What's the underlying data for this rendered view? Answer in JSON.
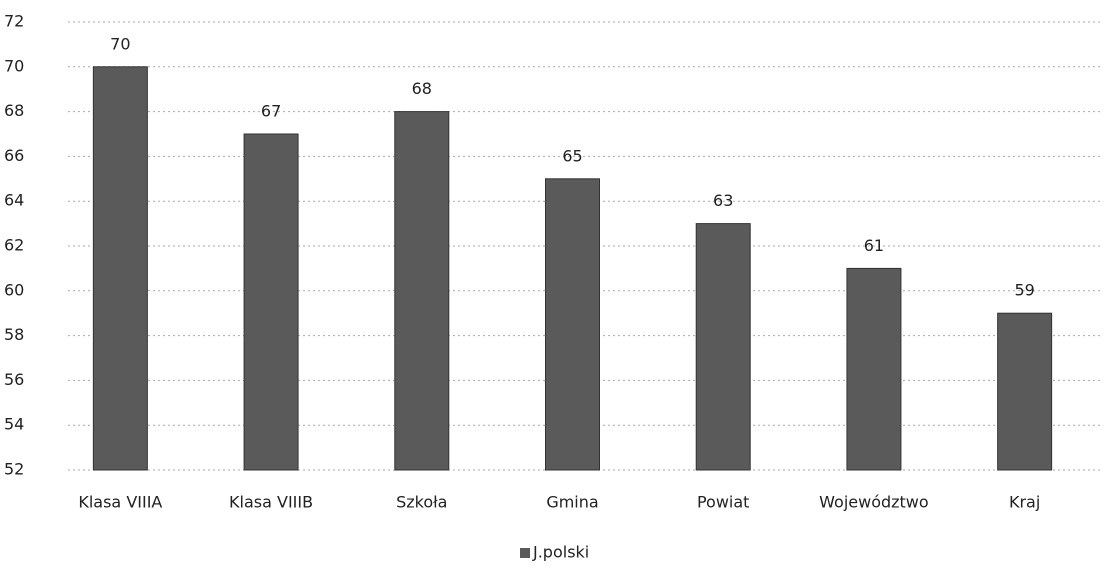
{
  "chart_data": {
    "type": "bar",
    "categories": [
      "Klasa VIIIA",
      "Klasa VIIIB",
      "Szkoła",
      "Gmina",
      "Powiat",
      "Województwo",
      "Kraj"
    ],
    "series": [
      {
        "name": "J.polski",
        "color": "#5a5a5a",
        "values": [
          70,
          67,
          68,
          65,
          63,
          61,
          59
        ]
      }
    ],
    "ylim": [
      52,
      72
    ],
    "yticks": [
      52,
      54,
      56,
      58,
      60,
      62,
      64,
      66,
      68,
      70,
      72
    ],
    "grid": true,
    "data_labels": true,
    "legend": "bottom"
  }
}
